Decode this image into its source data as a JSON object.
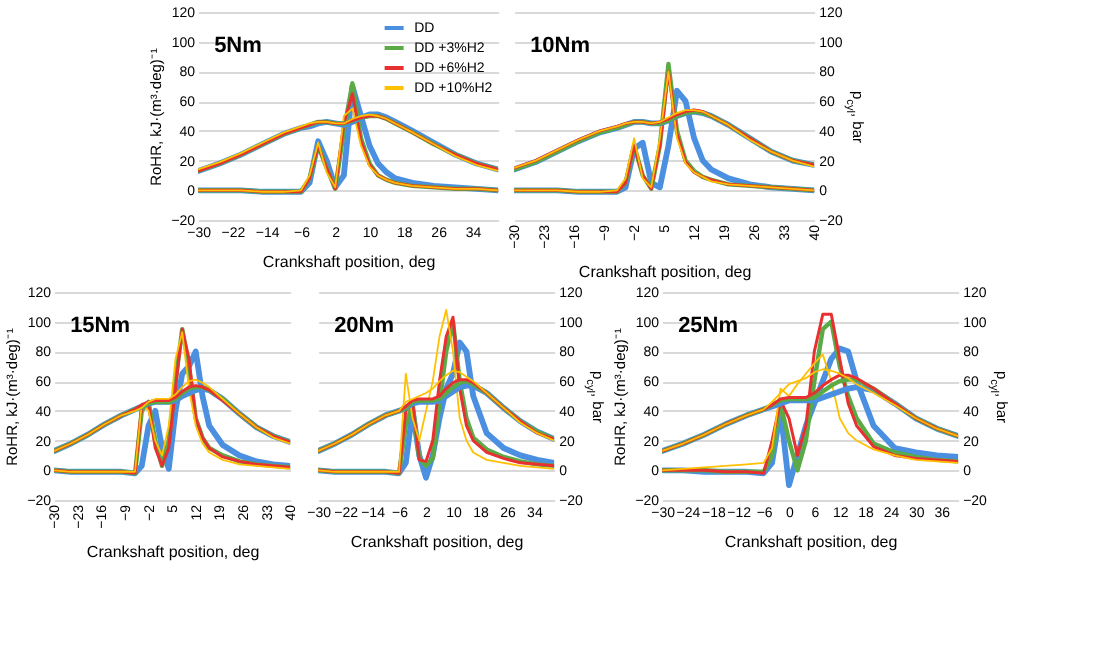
{
  "chart_data": [
    {
      "type": "line",
      "title": "5Nm",
      "xlabel": "Crankshaft position, deg",
      "ylabel": "RoHR, kJ·(m³·deg)⁻¹",
      "legend": "top right",
      "grid": "y",
      "xlim": [
        -30,
        40
      ],
      "xticks": [
        -30,
        -22,
        -14,
        -6,
        2,
        10,
        18,
        26,
        34
      ],
      "ylim": [
        -20,
        120
      ],
      "yticks": [
        -20,
        0,
        20,
        40,
        60,
        80,
        100,
        120
      ],
      "x": [
        -30,
        -25,
        -20,
        -15,
        -10,
        -6,
        -4,
        -2,
        0,
        2,
        4,
        6,
        8,
        10,
        12,
        14,
        16,
        20,
        25,
        30,
        35,
        40
      ],
      "series": [
        {
          "name": "DD",
          "color": "#4a8fe0",
          "values": [
            0,
            0,
            0,
            -1,
            -1,
            -1,
            5,
            33,
            20,
            2,
            10,
            70,
            50,
            30,
            18,
            12,
            8,
            5,
            3,
            2,
            1,
            0
          ]
        },
        {
          "name": "DD +3%H2",
          "color": "#5aaa46",
          "values": [
            0,
            0,
            0,
            -1,
            -1,
            -1,
            8,
            30,
            15,
            1,
            40,
            72,
            35,
            18,
            10,
            7,
            5,
            3,
            2,
            1,
            1,
            0
          ]
        },
        {
          "name": "DD +6%H2",
          "color": "#e83030",
          "values": [
            0,
            0,
            0,
            -1,
            -1,
            -1,
            8,
            30,
            15,
            1,
            45,
            65,
            33,
            17,
            10,
            7,
            5,
            3,
            2,
            1,
            1,
            0
          ]
        },
        {
          "name": "DD +10%H2",
          "color": "#ffc000",
          "values": [
            0,
            0,
            0,
            -1,
            -1,
            0,
            10,
            32,
            12,
            2,
            50,
            55,
            30,
            16,
            10,
            7,
            5,
            3,
            2,
            1,
            1,
            0
          ]
        },
        {
          "color": "#4a8fe0",
          "values": [
            13,
            18,
            24,
            31,
            38,
            42,
            43,
            45,
            46,
            45,
            44,
            46,
            49,
            51,
            51,
            49,
            46,
            40,
            32,
            24,
            18,
            14
          ]
        },
        {
          "color": "#5aaa46",
          "values": [
            13,
            18,
            24,
            31,
            38,
            42,
            44,
            46,
            46,
            45,
            45,
            47,
            49,
            50,
            50,
            48,
            45,
            39,
            31,
            24,
            18,
            14
          ]
        },
        {
          "color": "#e83030",
          "values": [
            13,
            18,
            24,
            31,
            38,
            42,
            44,
            46,
            46,
            45,
            45,
            47,
            49,
            50,
            50,
            48,
            45,
            39,
            31,
            24,
            18,
            14
          ]
        },
        {
          "color": "#ffc000",
          "values": [
            14,
            19,
            25,
            32,
            39,
            43,
            45,
            46,
            46,
            45,
            45,
            48,
            50,
            51,
            50,
            48,
            45,
            39,
            31,
            23,
            17,
            13
          ]
        }
      ]
    },
    {
      "type": "line",
      "title": "10Nm",
      "xlabel": "Crankshaft position, deg",
      "y2label": "p$_{cyl}$, bar",
      "grid": "y",
      "xlim": [
        -30,
        40
      ],
      "xticks": [
        -30,
        -23,
        -16,
        -9,
        -2,
        5,
        12,
        19,
        26,
        33,
        40
      ],
      "y2lim": [
        -20,
        120
      ],
      "y2ticks": [
        -20,
        0,
        20,
        40,
        60,
        80,
        100,
        120
      ],
      "x": [
        -30,
        -25,
        -20,
        -15,
        -10,
        -6,
        -4,
        -2,
        0,
        2,
        4,
        6,
        8,
        10,
        12,
        14,
        16,
        20,
        25,
        30,
        35,
        40
      ],
      "series": [
        {
          "color": "#4a8fe0",
          "axis": "y2",
          "values": [
            0,
            0,
            0,
            -1,
            -1,
            -1,
            2,
            28,
            32,
            5,
            2,
            30,
            67,
            60,
            35,
            20,
            14,
            8,
            4,
            2,
            1,
            0
          ]
        },
        {
          "color": "#5aaa46",
          "axis": "y2",
          "values": [
            0,
            0,
            0,
            -1,
            -1,
            -1,
            5,
            30,
            10,
            1,
            30,
            85,
            40,
            20,
            13,
            9,
            7,
            4,
            3,
            2,
            1,
            0
          ]
        },
        {
          "color": "#e83030",
          "axis": "y2",
          "values": [
            0,
            0,
            0,
            -1,
            -1,
            -1,
            5,
            30,
            10,
            1,
            30,
            80,
            38,
            19,
            12,
            9,
            7,
            4,
            3,
            2,
            1,
            0
          ]
        },
        {
          "color": "#ffc000",
          "axis": "y2",
          "values": [
            0,
            0,
            0,
            -1,
            -1,
            0,
            8,
            35,
            8,
            2,
            35,
            80,
            35,
            18,
            12,
            9,
            6,
            4,
            3,
            2,
            1,
            0
          ]
        },
        {
          "color": "#4a8fe0",
          "axis": "y2",
          "values": [
            14,
            19,
            26,
            33,
            39,
            42,
            44,
            46,
            46,
            45,
            45,
            47,
            50,
            52,
            53,
            52,
            50,
            44,
            35,
            26,
            20,
            17
          ]
        },
        {
          "color": "#5aaa46",
          "axis": "y2",
          "values": [
            14,
            19,
            26,
            33,
            39,
            42,
            44,
            46,
            46,
            45,
            45,
            47,
            50,
            52,
            53,
            52,
            50,
            44,
            35,
            26,
            20,
            17
          ]
        },
        {
          "color": "#e83030",
          "axis": "y2",
          "values": [
            15,
            20,
            27,
            34,
            40,
            43,
            45,
            46,
            46,
            45,
            46,
            48,
            51,
            53,
            54,
            53,
            50,
            44,
            35,
            26,
            20,
            17
          ]
        },
        {
          "color": "#ffc000",
          "axis": "y2",
          "values": [
            15,
            20,
            27,
            34,
            40,
            43,
            45,
            46,
            46,
            45,
            46,
            49,
            52,
            54,
            54,
            53,
            50,
            44,
            34,
            26,
            20,
            16
          ]
        }
      ]
    },
    {
      "type": "line",
      "title": "15Nm",
      "xlabel": "Crankshaft position, deg",
      "ylabel": "RoHR, kJ·(m³·deg)⁻¹",
      "grid": "y",
      "xlim": [
        -30,
        40
      ],
      "xticks": [
        -30,
        -23,
        -16,
        -9,
        -2,
        5,
        12,
        19,
        26,
        33,
        40
      ],
      "ylim": [
        -20,
        120
      ],
      "yticks": [
        -20,
        0,
        20,
        40,
        60,
        80,
        100,
        120
      ],
      "x": [
        -30,
        -25,
        -20,
        -15,
        -10,
        -6,
        -4,
        -2,
        0,
        2,
        4,
        6,
        8,
        10,
        12,
        14,
        16,
        20,
        25,
        30,
        35,
        40
      ],
      "series": [
        {
          "color": "#4a8fe0",
          "values": [
            0,
            -1,
            -1,
            -1,
            -1,
            -2,
            3,
            30,
            40,
            15,
            1,
            40,
            65,
            70,
            80,
            50,
            30,
            17,
            10,
            6,
            4,
            3
          ]
        },
        {
          "color": "#5aaa46",
          "values": [
            0,
            -1,
            -1,
            -1,
            -1,
            -2,
            40,
            46,
            20,
            3,
            20,
            60,
            95,
            70,
            35,
            22,
            15,
            10,
            6,
            4,
            3,
            2
          ]
        },
        {
          "color": "#e83030",
          "values": [
            0,
            -1,
            -1,
            -1,
            -1,
            -2,
            44,
            45,
            15,
            3,
            15,
            55,
            95,
            75,
            35,
            22,
            15,
            9,
            6,
            4,
            3,
            2
          ]
        },
        {
          "color": "#ffc000",
          "values": [
            0,
            -1,
            -1,
            -1,
            -1,
            -1,
            45,
            40,
            20,
            10,
            30,
            75,
            93,
            55,
            30,
            18,
            12,
            7,
            4,
            3,
            2,
            1
          ]
        },
        {
          "color": "#4a8fe0",
          "values": [
            13,
            18,
            24,
            31,
            37,
            41,
            43,
            45,
            46,
            46,
            46,
            47,
            50,
            52,
            54,
            55,
            54,
            48,
            38,
            29,
            23,
            19
          ]
        },
        {
          "color": "#5aaa46",
          "values": [
            13,
            18,
            24,
            31,
            37,
            41,
            43,
            45,
            46,
            46,
            46,
            48,
            52,
            55,
            56,
            56,
            54,
            48,
            38,
            29,
            23,
            19
          ]
        },
        {
          "color": "#e83030",
          "values": [
            13,
            18,
            24,
            31,
            37,
            41,
            44,
            46,
            47,
            47,
            47,
            49,
            53,
            56,
            57,
            56,
            54,
            47,
            38,
            29,
            23,
            19
          ]
        },
        {
          "color": "#ffc000",
          "values": [
            13,
            18,
            24,
            31,
            37,
            40,
            42,
            46,
            48,
            48,
            48,
            51,
            56,
            60,
            61,
            59,
            56,
            48,
            38,
            29,
            22,
            18
          ]
        }
      ]
    },
    {
      "type": "line",
      "title": "20Nm",
      "xlabel": "Crankshaft position, deg",
      "y2label": "p$_{cyl}$, bar",
      "grid": "y",
      "xlim": [
        -30,
        40
      ],
      "xticks": [
        -30,
        -22,
        -14,
        -6,
        2,
        10,
        18,
        26,
        34
      ],
      "y2lim": [
        -20,
        120
      ],
      "y2ticks": [
        -20,
        0,
        20,
        40,
        60,
        80,
        100,
        120
      ],
      "x": [
        -30,
        -25,
        -20,
        -15,
        -10,
        -6,
        -4,
        -2,
        0,
        2,
        4,
        6,
        8,
        10,
        12,
        14,
        16,
        20,
        25,
        30,
        35,
        40
      ],
      "series": [
        {
          "color": "#4a8fe0",
          "axis": "y2",
          "values": [
            0,
            -1,
            -1,
            -1,
            -1,
            -2,
            5,
            40,
            10,
            -5,
            10,
            35,
            55,
            65,
            86,
            80,
            50,
            25,
            15,
            10,
            7,
            5
          ]
        },
        {
          "color": "#5aaa46",
          "axis": "y2",
          "values": [
            0,
            -1,
            -1,
            -1,
            -1,
            -2,
            30,
            45,
            8,
            3,
            8,
            45,
            80,
            100,
            60,
            35,
            22,
            14,
            9,
            6,
            4,
            3
          ]
        },
        {
          "color": "#e83030",
          "axis": "y2",
          "values": [
            0,
            -1,
            -1,
            -1,
            -1,
            -2,
            40,
            46,
            7,
            6,
            20,
            60,
            90,
            103,
            55,
            30,
            20,
            12,
            8,
            5,
            4,
            3
          ]
        },
        {
          "color": "#ffc000",
          "axis": "y2",
          "values": [
            0,
            -1,
            -1,
            -1,
            -1,
            -1,
            65,
            35,
            20,
            40,
            60,
            90,
            108,
            80,
            35,
            20,
            12,
            7,
            5,
            3,
            2,
            1
          ]
        },
        {
          "color": "#4a8fe0",
          "axis": "y2",
          "values": [
            13,
            18,
            24,
            31,
            37,
            40,
            42,
            45,
            46,
            46,
            46,
            47,
            50,
            53,
            56,
            57,
            57,
            52,
            42,
            33,
            26,
            21
          ]
        },
        {
          "color": "#5aaa46",
          "axis": "y2",
          "values": [
            13,
            18,
            24,
            31,
            37,
            40,
            42,
            46,
            47,
            47,
            47,
            48,
            52,
            56,
            59,
            60,
            58,
            52,
            42,
            33,
            26,
            21
          ]
        },
        {
          "color": "#e83030",
          "axis": "y2",
          "values": [
            13,
            18,
            24,
            31,
            37,
            40,
            43,
            47,
            48,
            48,
            48,
            50,
            55,
            59,
            61,
            61,
            59,
            52,
            42,
            33,
            25,
            21
          ]
        },
        {
          "color": "#ffc000",
          "axis": "y2",
          "values": [
            13,
            18,
            24,
            31,
            37,
            40,
            46,
            48,
            50,
            52,
            55,
            60,
            64,
            67,
            66,
            63,
            60,
            52,
            42,
            32,
            25,
            20
          ]
        }
      ]
    },
    {
      "type": "line",
      "title": "25Nm",
      "xlabel": "Crankshaft position, deg",
      "ylabel": "RoHR, kJ·(m³·deg)⁻¹",
      "y2label": "p$_{cyl}$, bar",
      "grid": "y",
      "xlim": [
        -30,
        40
      ],
      "xticks": [
        -30,
        -24,
        -18,
        -12,
        -6,
        0,
        6,
        12,
        18,
        24,
        30,
        36
      ],
      "ylim": [
        -20,
        120
      ],
      "yticks": [
        -20,
        0,
        20,
        40,
        60,
        80,
        100,
        120
      ],
      "y2lim": [
        -20,
        120
      ],
      "y2ticks": [
        -20,
        0,
        20,
        40,
        60,
        80,
        100,
        120
      ],
      "x": [
        -30,
        -25,
        -20,
        -15,
        -10,
        -6,
        -4,
        -2,
        0,
        2,
        4,
        6,
        8,
        10,
        12,
        14,
        16,
        20,
        25,
        30,
        35,
        40
      ],
      "series": [
        {
          "color": "#4a8fe0",
          "values": [
            0,
            0,
            -1,
            -1,
            -1,
            -2,
            5,
            40,
            -10,
            10,
            30,
            45,
            60,
            75,
            82,
            80,
            60,
            30,
            15,
            12,
            10,
            9
          ]
        },
        {
          "color": "#5aaa46",
          "values": [
            0,
            0,
            0,
            -1,
            -1,
            -1,
            10,
            45,
            20,
            0,
            20,
            60,
            95,
            100,
            70,
            50,
            35,
            18,
            12,
            9,
            7,
            6
          ]
        },
        {
          "color": "#e83030",
          "values": [
            0,
            0,
            0,
            -1,
            -1,
            -2,
            20,
            47,
            35,
            10,
            30,
            80,
            105,
            105,
            75,
            45,
            30,
            16,
            10,
            8,
            7,
            6
          ]
        },
        {
          "color": "#ffc000",
          "values": [
            0,
            1,
            2,
            3,
            4,
            5,
            15,
            55,
            50,
            58,
            65,
            72,
            78,
            60,
            35,
            25,
            20,
            14,
            10,
            7,
            6,
            5
          ]
        },
        {
          "color": "#4a8fe0",
          "axis": "y2",
          "values": [
            13,
            18,
            24,
            31,
            37,
            41,
            43,
            45,
            47,
            47,
            47,
            47,
            49,
            51,
            53,
            55,
            56,
            54,
            45,
            35,
            28,
            23
          ]
        },
        {
          "color": "#5aaa46",
          "axis": "y2",
          "values": [
            13,
            18,
            24,
            31,
            37,
            41,
            44,
            47,
            48,
            48,
            48,
            49,
            53,
            57,
            60,
            61,
            61,
            55,
            45,
            35,
            28,
            23
          ]
        },
        {
          "color": "#e83030",
          "axis": "y2",
          "values": [
            13,
            18,
            24,
            31,
            37,
            41,
            44,
            48,
            49,
            49,
            49,
            52,
            57,
            61,
            64,
            64,
            62,
            55,
            45,
            35,
            28,
            23
          ]
        },
        {
          "color": "#ffc000",
          "axis": "y2",
          "values": [
            13,
            18,
            24,
            31,
            37,
            41,
            46,
            52,
            58,
            60,
            62,
            66,
            68,
            67,
            65,
            62,
            58,
            52,
            44,
            35,
            28,
            23
          ]
        }
      ]
    }
  ]
}
